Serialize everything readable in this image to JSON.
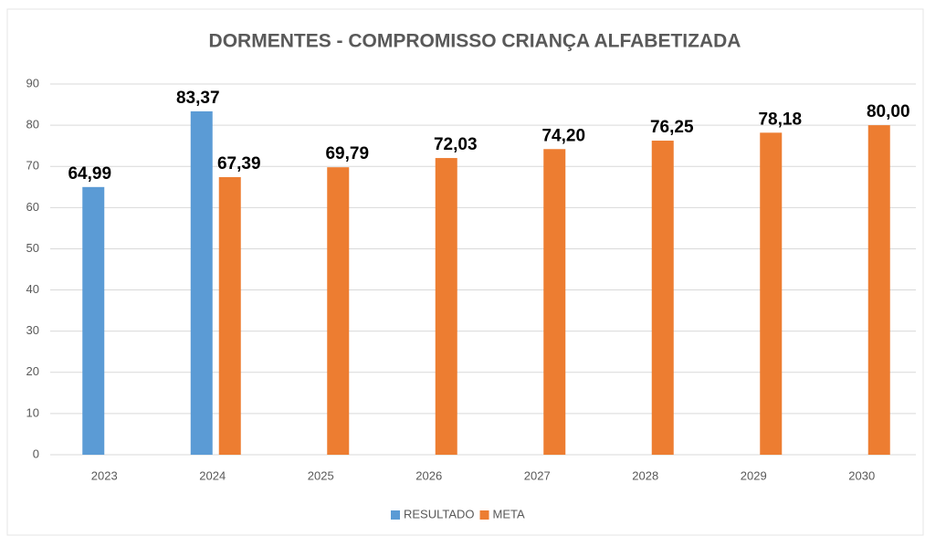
{
  "chart_data": {
    "type": "bar",
    "title": "DORMENTES - COMPROMISSO CRIANÇA ALFABETIZADA",
    "categories": [
      "2023",
      "2024",
      "2025",
      "2026",
      "2027",
      "2028",
      "2029",
      "2030"
    ],
    "series": [
      {
        "name": "RESULTADO",
        "color": "#5b9bd5",
        "values": [
          64.99,
          83.37,
          null,
          null,
          null,
          null,
          null,
          null
        ],
        "value_labels": [
          "64,99",
          "83,37",
          null,
          null,
          null,
          null,
          null,
          null
        ]
      },
      {
        "name": "META",
        "color": "#ed7d31",
        "values": [
          null,
          67.39,
          69.79,
          72.03,
          74.2,
          76.25,
          78.18,
          80.0
        ],
        "value_labels": [
          null,
          "67,39",
          "69,79",
          "72,03",
          "74,20",
          "76,25",
          "78,18",
          "80,00"
        ]
      }
    ],
    "ylim": [
      0,
      90
    ],
    "yticks": [
      0,
      10,
      20,
      30,
      40,
      50,
      60,
      70,
      80,
      90
    ],
    "grid": true,
    "legend": "bottom"
  }
}
